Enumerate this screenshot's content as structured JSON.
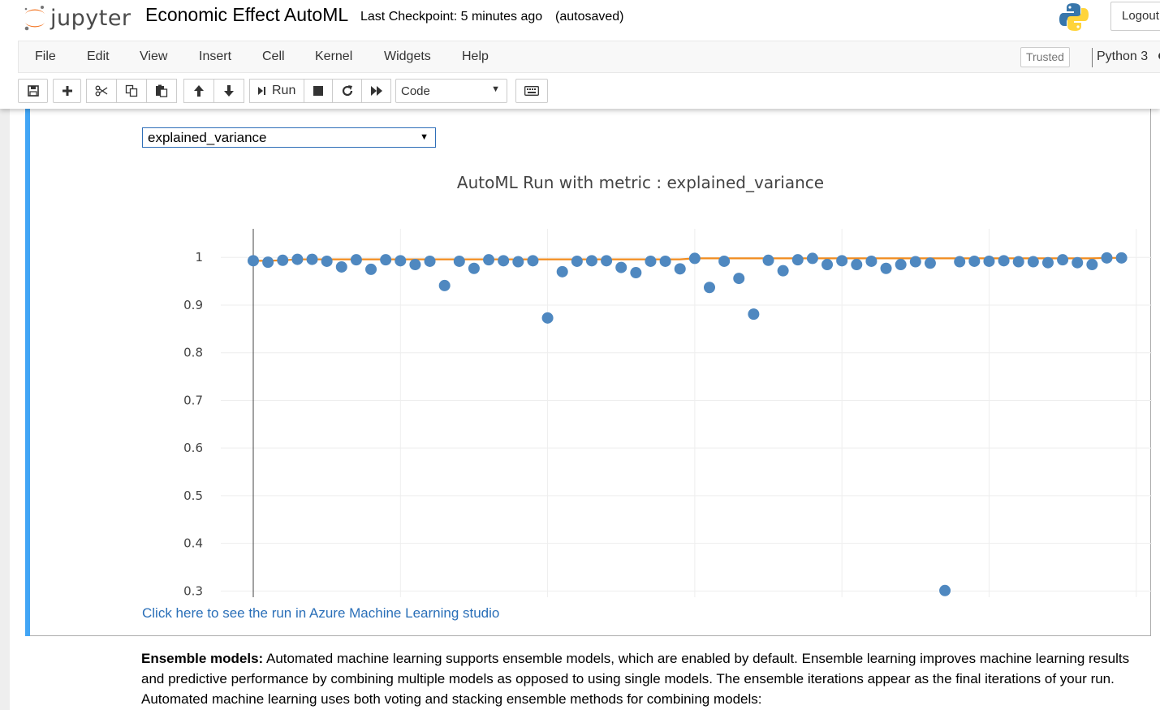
{
  "header": {
    "logo_text": "jupyter",
    "notebook_name": "Economic Effect AutoML",
    "checkpoint": "Last Checkpoint: 5 minutes ago",
    "autosaved": "(autosaved)",
    "logout_label": "Logout"
  },
  "menubar": {
    "items": [
      "File",
      "Edit",
      "View",
      "Insert",
      "Cell",
      "Kernel",
      "Widgets",
      "Help"
    ],
    "trusted_label": "Trusted",
    "kernel_name": "Python 3"
  },
  "toolbar": {
    "run_label": "Run",
    "cell_type": "Code",
    "icons": [
      "save-icon",
      "plus-icon",
      "cut-icon",
      "copy-icon",
      "paste-icon",
      "arrow-up-icon",
      "arrow-down-icon",
      "run-icon",
      "stop-icon",
      "restart-icon",
      "fast-forward-icon",
      "keyboard-icon"
    ]
  },
  "output": {
    "metric_select_value": "explained_variance",
    "run_link": "Click here to see the run in Azure Machine Learning studio"
  },
  "chart_data": {
    "type": "scatter",
    "title": "AutoML Run with metric : explained_variance",
    "xlabel": "",
    "ylabel": "",
    "xlim": [
      0,
      62
    ],
    "ylim": [
      0.27,
      1.06
    ],
    "x_ticks": [
      0,
      10,
      20,
      30,
      40,
      50,
      60
    ],
    "y_ticks": [
      0.3,
      0.4,
      0.5,
      0.6,
      0.7,
      0.8,
      0.9,
      1
    ],
    "y_tick_labels": [
      "0.3",
      "0.4",
      "0.5",
      "0.6",
      "0.7",
      "0.8",
      "0.9",
      "1"
    ],
    "grid": true,
    "colors": {
      "points": "#4f88c0",
      "best_line": "#f28c1e",
      "grid": "#eeeeee"
    },
    "series": [
      {
        "kind": "points",
        "x": [
          0,
          1,
          2,
          3,
          4,
          5,
          6,
          7,
          8,
          9,
          10,
          11,
          12,
          13,
          14,
          15,
          16,
          17,
          18,
          19,
          20,
          21,
          22,
          23,
          24,
          25,
          26,
          27,
          28,
          29,
          30,
          31,
          32,
          33,
          34,
          35,
          36,
          37,
          38,
          39,
          40,
          41,
          42,
          43,
          44,
          45,
          46,
          47,
          48,
          49,
          50,
          51,
          52,
          53,
          54,
          55,
          56,
          57,
          58,
          59
        ],
        "y": [
          0.993,
          0.99,
          0.994,
          0.996,
          0.996,
          0.992,
          0.98,
          0.995,
          0.975,
          0.995,
          0.993,
          0.985,
          0.992,
          0.941,
          0.992,
          0.977,
          0.995,
          0.993,
          0.991,
          0.993,
          0.873,
          0.97,
          0.992,
          0.993,
          0.993,
          0.979,
          0.968,
          0.992,
          0.992,
          0.976,
          0.998,
          0.937,
          0.992,
          0.956,
          0.881,
          0.994,
          0.972,
          0.995,
          0.998,
          0.985,
          0.993,
          0.985,
          0.992,
          0.977,
          0.985,
          0.991,
          0.988,
          0.301,
          0.991,
          0.992,
          0.992,
          0.993,
          0.991,
          0.991,
          0.989,
          0.995,
          0.989,
          0.985,
          0.999,
          0.999
        ]
      },
      {
        "kind": "best-line",
        "x": [
          0,
          1,
          2,
          3,
          4,
          5,
          6,
          7,
          8,
          9,
          10,
          11,
          12,
          13,
          14,
          15,
          16,
          17,
          18,
          19,
          20,
          21,
          22,
          23,
          24,
          25,
          26,
          27,
          28,
          29,
          30,
          31,
          32,
          33,
          34,
          35,
          36,
          37,
          38,
          39,
          40,
          41,
          42,
          43,
          44,
          45,
          46,
          47,
          48,
          49,
          50,
          51,
          52,
          53,
          54,
          55,
          56,
          57,
          58,
          59
        ],
        "y": [
          0.993,
          0.993,
          0.994,
          0.996,
          0.996,
          0.996,
          0.996,
          0.996,
          0.996,
          0.996,
          0.996,
          0.996,
          0.996,
          0.996,
          0.996,
          0.996,
          0.996,
          0.996,
          0.996,
          0.996,
          0.996,
          0.996,
          0.996,
          0.996,
          0.996,
          0.996,
          0.996,
          0.996,
          0.996,
          0.996,
          0.998,
          0.998,
          0.998,
          0.998,
          0.998,
          0.998,
          0.998,
          0.998,
          0.998,
          0.998,
          0.998,
          0.998,
          0.998,
          0.998,
          0.998,
          0.998,
          0.998,
          0.998,
          0.998,
          0.998,
          0.998,
          0.998,
          0.998,
          0.998,
          0.998,
          0.998,
          0.998,
          0.998,
          0.999,
          0.999
        ]
      }
    ]
  },
  "markdown": {
    "bold": "Ensemble models:",
    "text": " Automated machine learning supports ensemble models, which are enabled by default. Ensemble learning improves machine learning results and predictive performance by combining multiple models as opposed to using single models. The ensemble iterations appear as the final iterations of your run. Automated machine learning uses both voting and stacking ensemble methods for combining models:"
  }
}
